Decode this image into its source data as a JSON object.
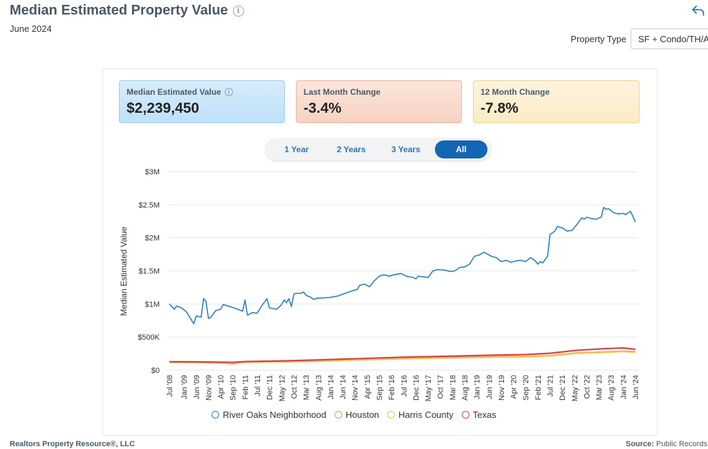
{
  "header": {
    "title": "Median Estimated Property Value",
    "date": "June 2024",
    "info_icon": "info-icon",
    "share_icon": "share-back-icon"
  },
  "property_type": {
    "label": "Property Type",
    "value": "SF + Condo/TH/Apt"
  },
  "cards": [
    {
      "label": "Median Estimated Value",
      "value": "$2,239,450"
    },
    {
      "label": "Last Month Change",
      "value": "-3.4%"
    },
    {
      "label": "12 Month Change",
      "value": "-7.8%"
    }
  ],
  "tabs": [
    {
      "label": "1 Year",
      "active": false
    },
    {
      "label": "2 Years",
      "active": false
    },
    {
      "label": "3 Years",
      "active": false
    },
    {
      "label": "All",
      "active": true
    }
  ],
  "footer": {
    "left": "Realtors Property Resource®, LLC",
    "right_label": "Source:",
    "right_value": "Public Records"
  },
  "chart_data": {
    "type": "line",
    "ylabel": "Median Estimated Value",
    "ylim": [
      0,
      3000000
    ],
    "yticks": [
      {
        "value": 0,
        "label": "$0"
      },
      {
        "value": 500000,
        "label": "$500K"
      },
      {
        "value": 1000000,
        "label": "$1M"
      },
      {
        "value": 1500000,
        "label": "$1.5M"
      },
      {
        "value": 2000000,
        "label": "$2M"
      },
      {
        "value": 2500000,
        "label": "$2.5M"
      },
      {
        "value": 3000000,
        "label": "$3M"
      }
    ],
    "x_start": "2008-07",
    "x_end": "2024-06",
    "xticks": [
      "Jul '08",
      "Jan '09",
      "Jun '09",
      "Nov '09",
      "Apr '10",
      "Sep '10",
      "Feb '11",
      "Jul '11",
      "Dec '11",
      "May '12",
      "Oct '12",
      "Mar '13",
      "Aug '13",
      "Jan '14",
      "Jun '14",
      "Nov '14",
      "Apr '15",
      "Sep '15",
      "Feb '16",
      "Jul '16",
      "Dec '16",
      "May '17",
      "Oct '17",
      "Mar '18",
      "Aug '18",
      "Jan '19",
      "Jun '19",
      "Nov '19",
      "Apr '20",
      "Sep '20",
      "Feb '21",
      "Jul '21",
      "Dec '21",
      "May '22",
      "Oct '22",
      "Mar '23",
      "Aug '23",
      "Jan '24",
      "Jun '24"
    ],
    "grid": true,
    "legend_position": "bottom",
    "series": [
      {
        "name": "River Oaks Neighborhood",
        "color": "#2b7fc3",
        "points": [
          [
            "2008-07",
            1000000
          ],
          [
            "2008-09",
            920000
          ],
          [
            "2008-10",
            970000
          ],
          [
            "2008-12",
            940000
          ],
          [
            "2009-02",
            880000
          ],
          [
            "2009-04",
            760000
          ],
          [
            "2009-05",
            700000
          ],
          [
            "2009-06",
            820000
          ],
          [
            "2009-08",
            800000
          ],
          [
            "2009-09",
            1080000
          ],
          [
            "2009-10",
            1040000
          ],
          [
            "2009-11",
            780000
          ],
          [
            "2009-12",
            800000
          ],
          [
            "2010-02",
            900000
          ],
          [
            "2010-04",
            920000
          ],
          [
            "2010-05",
            990000
          ],
          [
            "2010-08",
            960000
          ],
          [
            "2010-11",
            920000
          ],
          [
            "2011-01",
            890000
          ],
          [
            "2011-02",
            1060000
          ],
          [
            "2011-03",
            830000
          ],
          [
            "2011-05",
            870000
          ],
          [
            "2011-07",
            860000
          ],
          [
            "2011-09",
            980000
          ],
          [
            "2011-11",
            1080000
          ],
          [
            "2011-12",
            940000
          ],
          [
            "2012-03",
            920000
          ],
          [
            "2012-05",
            990000
          ],
          [
            "2012-06",
            1060000
          ],
          [
            "2012-07",
            1020000
          ],
          [
            "2012-08",
            1080000
          ],
          [
            "2012-09",
            960000
          ],
          [
            "2012-10",
            1150000
          ],
          [
            "2012-11",
            1160000
          ],
          [
            "2013-01",
            1160000
          ],
          [
            "2013-02",
            1180000
          ],
          [
            "2013-03",
            1130000
          ],
          [
            "2013-05",
            1100000
          ],
          [
            "2013-06",
            1070000
          ],
          [
            "2013-08",
            1090000
          ],
          [
            "2013-10",
            1090000
          ],
          [
            "2014-01",
            1100000
          ],
          [
            "2014-04",
            1120000
          ],
          [
            "2014-07",
            1160000
          ],
          [
            "2014-10",
            1200000
          ],
          [
            "2014-12",
            1220000
          ],
          [
            "2015-01",
            1280000
          ],
          [
            "2015-03",
            1300000
          ],
          [
            "2015-05",
            1260000
          ],
          [
            "2015-07",
            1350000
          ],
          [
            "2015-09",
            1420000
          ],
          [
            "2015-11",
            1440000
          ],
          [
            "2016-01",
            1420000
          ],
          [
            "2016-03",
            1440000
          ],
          [
            "2016-06",
            1460000
          ],
          [
            "2016-08",
            1420000
          ],
          [
            "2016-11",
            1400000
          ],
          [
            "2016-12",
            1380000
          ],
          [
            "2017-01",
            1420000
          ],
          [
            "2017-03",
            1410000
          ],
          [
            "2017-05",
            1400000
          ],
          [
            "2017-07",
            1500000
          ],
          [
            "2017-09",
            1520000
          ],
          [
            "2017-12",
            1510000
          ],
          [
            "2018-02",
            1490000
          ],
          [
            "2018-04",
            1500000
          ],
          [
            "2018-06",
            1550000
          ],
          [
            "2018-08",
            1560000
          ],
          [
            "2018-10",
            1600000
          ],
          [
            "2018-12",
            1720000
          ],
          [
            "2019-02",
            1740000
          ],
          [
            "2019-04",
            1780000
          ],
          [
            "2019-05",
            1760000
          ],
          [
            "2019-07",
            1720000
          ],
          [
            "2019-09",
            1700000
          ],
          [
            "2019-11",
            1640000
          ],
          [
            "2020-01",
            1660000
          ],
          [
            "2020-03",
            1630000
          ],
          [
            "2020-05",
            1650000
          ],
          [
            "2020-07",
            1660000
          ],
          [
            "2020-09",
            1640000
          ],
          [
            "2020-11",
            1700000
          ],
          [
            "2021-01",
            1650000
          ],
          [
            "2021-02",
            1600000
          ],
          [
            "2021-03",
            1640000
          ],
          [
            "2021-04",
            1620000
          ],
          [
            "2021-06",
            1720000
          ],
          [
            "2021-07",
            2050000
          ],
          [
            "2021-09",
            2100000
          ],
          [
            "2021-10",
            2170000
          ],
          [
            "2021-12",
            2150000
          ],
          [
            "2022-02",
            2100000
          ],
          [
            "2022-04",
            2110000
          ],
          [
            "2022-06",
            2200000
          ],
          [
            "2022-08",
            2300000
          ],
          [
            "2022-09",
            2280000
          ],
          [
            "2022-10",
            2310000
          ],
          [
            "2022-12",
            2290000
          ],
          [
            "2023-02",
            2280000
          ],
          [
            "2023-03",
            2300000
          ],
          [
            "2023-04",
            2310000
          ],
          [
            "2023-05",
            2460000
          ],
          [
            "2023-06",
            2430000
          ],
          [
            "2023-07",
            2440000
          ],
          [
            "2023-09",
            2380000
          ],
          [
            "2023-11",
            2360000
          ],
          [
            "2024-01",
            2370000
          ],
          [
            "2024-02",
            2350000
          ],
          [
            "2024-04",
            2400000
          ],
          [
            "2024-05",
            2320000
          ],
          [
            "2024-06",
            2239450
          ]
        ]
      },
      {
        "name": "Houston",
        "color": "#f0924f",
        "points": [
          [
            "2008-07",
            120000
          ],
          [
            "2009-06",
            115000
          ],
          [
            "2010-04",
            110000
          ],
          [
            "2010-09",
            95000
          ],
          [
            "2011-02",
            125000
          ],
          [
            "2012-06",
            130000
          ],
          [
            "2013-08",
            140000
          ],
          [
            "2015-01",
            160000
          ],
          [
            "2016-06",
            175000
          ],
          [
            "2018-01",
            190000
          ],
          [
            "2019-06",
            200000
          ],
          [
            "2020-09",
            205000
          ],
          [
            "2021-07",
            220000
          ],
          [
            "2022-06",
            260000
          ],
          [
            "2023-06",
            275000
          ],
          [
            "2024-01",
            285000
          ],
          [
            "2024-06",
            278000
          ]
        ]
      },
      {
        "name": "Harris County",
        "color": "#f6c24c",
        "points": [
          [
            "2008-07",
            118000
          ],
          [
            "2009-06",
            116000
          ],
          [
            "2010-04",
            112000
          ],
          [
            "2010-09",
            100000
          ],
          [
            "2011-02",
            120000
          ],
          [
            "2012-06",
            125000
          ],
          [
            "2013-08",
            135000
          ],
          [
            "2015-01",
            155000
          ],
          [
            "2016-06",
            170000
          ],
          [
            "2018-01",
            185000
          ],
          [
            "2019-06",
            195000
          ],
          [
            "2020-09",
            200000
          ],
          [
            "2021-07",
            215000
          ],
          [
            "2022-06",
            255000
          ],
          [
            "2023-06",
            270000
          ],
          [
            "2024-01",
            280000
          ],
          [
            "2024-06",
            270000
          ]
        ]
      },
      {
        "name": "Texas",
        "color": "#d6414a",
        "points": [
          [
            "2008-07",
            128000
          ],
          [
            "2009-06",
            125000
          ],
          [
            "2010-04",
            120000
          ],
          [
            "2010-09",
            118000
          ],
          [
            "2011-02",
            130000
          ],
          [
            "2012-06",
            140000
          ],
          [
            "2013-08",
            155000
          ],
          [
            "2015-01",
            175000
          ],
          [
            "2016-06",
            195000
          ],
          [
            "2018-01",
            210000
          ],
          [
            "2019-06",
            225000
          ],
          [
            "2020-09",
            235000
          ],
          [
            "2021-07",
            255000
          ],
          [
            "2022-06",
            300000
          ],
          [
            "2023-06",
            325000
          ],
          [
            "2024-01",
            335000
          ],
          [
            "2024-06",
            315000
          ]
        ]
      }
    ]
  }
}
